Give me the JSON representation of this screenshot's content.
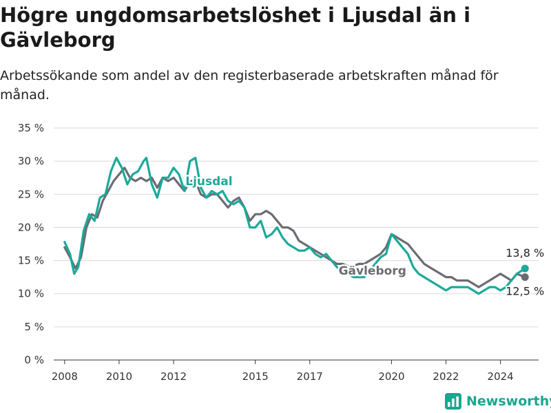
{
  "title": "Högre ungdomsarbetslöshet i Ljusdal än i Gävleborg",
  "subtitle": "Arbetssökande som andel av den registerbaserade arbetskraften månad för månad.",
  "brand": {
    "name": "Newsworthy",
    "color": "#1aa68f"
  },
  "chart_data": {
    "type": "line",
    "title": "Högre ungdomsarbetslöshet i Ljusdal än i Gävleborg",
    "subtitle": "Arbetssökande som andel av den registerbaserade arbetskraften månad för månad.",
    "xlabel": "",
    "ylabel": "",
    "xlim": [
      2007.6,
      2025.4
    ],
    "ylim": [
      0,
      35
    ],
    "y_ticks": [
      0,
      5,
      10,
      15,
      20,
      25,
      30,
      35
    ],
    "y_tick_labels": [
      "0 %",
      "5 %",
      "10 %",
      "15 %",
      "20 %",
      "25 %",
      "30 %",
      "35 %"
    ],
    "x_ticks": [
      2008,
      2010,
      2012,
      2015,
      2017,
      2020,
      2022,
      2024
    ],
    "x_tick_labels": [
      "2008",
      "2010",
      "2012",
      "2015",
      "2017",
      "2020",
      "2022",
      "2024"
    ],
    "grid": "horizontal",
    "legend": "inline labels",
    "series": [
      {
        "name": "Gävleborg",
        "color": "#6b6b73",
        "end_label": "12,5 %",
        "x": [
          2008.0,
          2008.2,
          2008.4,
          2008.6,
          2008.8,
          2009.0,
          2009.2,
          2009.4,
          2009.6,
          2009.8,
          2010.0,
          2010.2,
          2010.4,
          2010.6,
          2010.8,
          2011.0,
          2011.2,
          2011.4,
          2011.6,
          2011.8,
          2012.0,
          2012.2,
          2012.4,
          2012.6,
          2012.8,
          2013.0,
          2013.2,
          2013.4,
          2013.6,
          2013.8,
          2014.0,
          2014.2,
          2014.4,
          2014.6,
          2014.8,
          2015.0,
          2015.2,
          2015.4,
          2015.6,
          2015.8,
          2016.0,
          2016.2,
          2016.4,
          2016.6,
          2016.8,
          2017.0,
          2017.2,
          2017.4,
          2017.6,
          2017.8,
          2018.0,
          2018.2,
          2018.5,
          2018.8,
          2019.0,
          2019.2,
          2019.4,
          2019.6,
          2019.8,
          2020.0,
          2020.2,
          2020.4,
          2020.6,
          2020.8,
          2021.0,
          2021.2,
          2021.4,
          2021.6,
          2021.8,
          2022.0,
          2022.2,
          2022.4,
          2022.6,
          2022.8,
          2023.0,
          2023.2,
          2023.4,
          2023.6,
          2023.8,
          2024.0,
          2024.2,
          2024.4,
          2024.6,
          2024.9
        ],
        "y": [
          17.0,
          15.5,
          13.8,
          15.5,
          20.0,
          22.0,
          21.5,
          24.0,
          25.5,
          27.0,
          28.0,
          29.0,
          27.5,
          27.0,
          27.5,
          27.0,
          27.5,
          26.0,
          27.5,
          27.0,
          27.5,
          26.5,
          25.5,
          27.0,
          27.0,
          25.0,
          24.5,
          25.0,
          25.0,
          24.0,
          23.0,
          24.0,
          24.5,
          23.0,
          21.0,
          22.0,
          22.0,
          22.5,
          22.0,
          21.0,
          20.0,
          20.0,
          19.5,
          18.0,
          17.5,
          17.0,
          16.5,
          16.0,
          15.5,
          15.0,
          14.5,
          14.5,
          14.0,
          14.5,
          14.5,
          15.0,
          15.5,
          16.0,
          17.0,
          19.0,
          18.5,
          18.0,
          17.5,
          16.5,
          15.5,
          14.5,
          14.0,
          13.5,
          13.0,
          12.5,
          12.5,
          12.0,
          12.0,
          12.0,
          11.5,
          11.0,
          11.5,
          12.0,
          12.5,
          13.0,
          12.5,
          12.0,
          13.0,
          12.5
        ]
      },
      {
        "name": "Ljusdal",
        "color": "#1aa99a",
        "end_label": "13,8 %",
        "x": [
          2008.0,
          2008.2,
          2008.35,
          2008.5,
          2008.7,
          2008.9,
          2009.1,
          2009.3,
          2009.5,
          2009.7,
          2009.9,
          2010.1,
          2010.3,
          2010.5,
          2010.7,
          2010.9,
          2011.0,
          2011.2,
          2011.4,
          2011.6,
          2011.8,
          2012.0,
          2012.2,
          2012.4,
          2012.6,
          2012.8,
          2013.0,
          2013.2,
          2013.4,
          2013.6,
          2013.8,
          2014.0,
          2014.2,
          2014.4,
          2014.6,
          2014.8,
          2015.0,
          2015.2,
          2015.4,
          2015.6,
          2015.8,
          2016.0,
          2016.2,
          2016.4,
          2016.6,
          2016.8,
          2017.0,
          2017.2,
          2017.4,
          2017.6,
          2017.8,
          2018.0,
          2018.2,
          2018.6,
          2019.0,
          2019.2,
          2019.4,
          2019.6,
          2019.8,
          2020.0,
          2020.2,
          2020.4,
          2020.6,
          2020.8,
          2021.0,
          2021.2,
          2021.4,
          2021.6,
          2021.8,
          2022.0,
          2022.2,
          2022.4,
          2022.6,
          2022.8,
          2023.0,
          2023.2,
          2023.4,
          2023.6,
          2023.8,
          2024.0,
          2024.2,
          2024.4,
          2024.6,
          2024.9
        ],
        "y": [
          17.8,
          16.0,
          13.0,
          14.0,
          19.5,
          22.0,
          21.0,
          24.5,
          25.0,
          28.5,
          30.5,
          29.0,
          26.5,
          28.0,
          28.5,
          30.0,
          30.5,
          26.5,
          24.5,
          27.5,
          27.5,
          29.0,
          28.0,
          25.5,
          30.0,
          30.5,
          26.0,
          24.5,
          25.5,
          25.0,
          25.5,
          24.0,
          23.5,
          24.0,
          23.0,
          20.0,
          20.0,
          21.0,
          18.5,
          19.0,
          20.0,
          18.5,
          17.5,
          17.0,
          16.5,
          16.5,
          17.0,
          16.0,
          15.5,
          16.0,
          15.0,
          14.0,
          13.5,
          12.5,
          12.5,
          13.5,
          14.5,
          15.5,
          16.0,
          19.0,
          18.0,
          17.0,
          16.0,
          14.0,
          13.0,
          12.5,
          12.0,
          11.5,
          11.0,
          10.5,
          11.0,
          11.0,
          11.0,
          11.0,
          10.5,
          10.0,
          10.5,
          11.0,
          11.0,
          10.5,
          11.0,
          12.0,
          13.0,
          13.8
        ]
      }
    ]
  }
}
